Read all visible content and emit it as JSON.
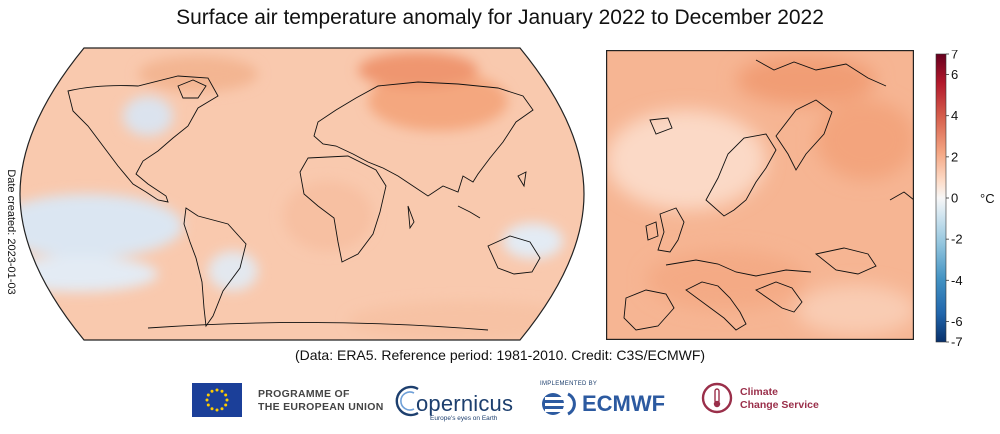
{
  "title": "Surface air temperature anomaly for January 2022 to December 2022",
  "side_label": "Date created: 2023-01-03",
  "caption": "(Data: ERA5.  Reference period: 1981-2010.  Credit: C3S/ECMWF)",
  "colorbar": {
    "ticks": [
      "7",
      "6",
      "4",
      "2",
      "0",
      "-2",
      "-4",
      "-6",
      "-7"
    ],
    "unit": "°C",
    "min": -7,
    "max": 7,
    "colors": [
      "#08306b",
      "#2166ac",
      "#4393c3",
      "#92c5de",
      "#d1e5f0",
      "#f7f7f7",
      "#fddbc7",
      "#f4a582",
      "#d6604d",
      "#b2182b",
      "#67001f"
    ]
  },
  "maps": {
    "world": {
      "projection": "Robinson",
      "dominant_anomaly_color": "#f9c9ae",
      "cool_anomaly_color": "#dbe6f2"
    },
    "europe": {
      "dominant_anomaly_color": "#f6b593"
    }
  },
  "logos": {
    "eu_line1": "PROGRAMME OF",
    "eu_line2": "THE EUROPEAN UNION",
    "copernicus": "opernicus",
    "copernicus_tagline": "Europe's eyes on Earth",
    "ecmwf_implemented": "IMPLEMENTED BY",
    "ecmwf": "ECMWF",
    "c3s_line1": "Climate",
    "c3s_line2": "Change Service"
  }
}
